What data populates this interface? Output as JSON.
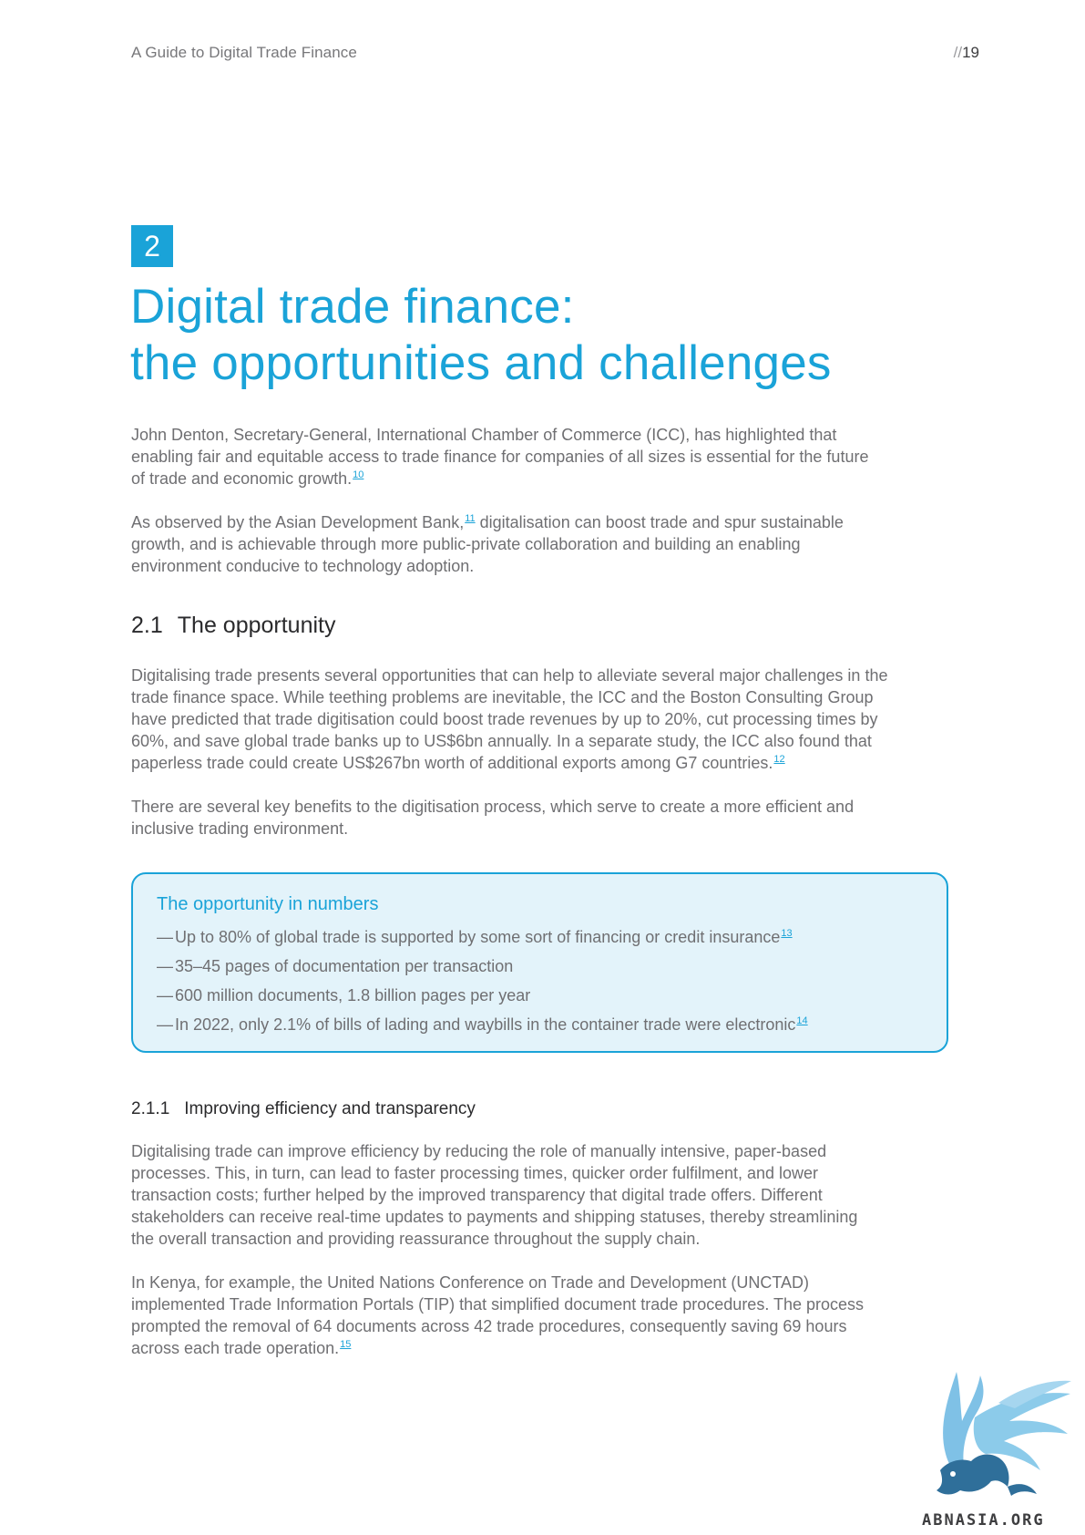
{
  "header": {
    "running_title": "A Guide to Digital Trade Finance",
    "page_prefix": "//",
    "page_number": "19"
  },
  "chapter": {
    "number": "2",
    "title_line1": "Digital trade finance:",
    "title_line2": "the opportunities and challenges"
  },
  "intro": {
    "p1": {
      "lines": [
        "John Denton, Secretary-General, International Chamber of Commerce (ICC), has highlighted that",
        "enabling fair and equitable access to trade finance for companies of all sizes is essential for the future",
        "of trade and economic growth."
      ],
      "footnote": "10"
    },
    "p2": {
      "line1_before": "As observed by the Asian Development Bank,",
      "footnote": "11",
      "line1_after": " digitalisation can boost trade and spur sustainable",
      "lines": [
        "growth, and is achievable through more public-private collaboration and building an enabling",
        "environment conducive to technology adoption."
      ]
    }
  },
  "section_2_1": {
    "number": "2.1",
    "title": "The opportunity",
    "p1": {
      "lines": [
        "Digitalising trade presents several opportunities that can help to alleviate several major challenges in the",
        "trade finance space. While teething problems are inevitable, the ICC and the Boston Consulting Group",
        "have predicted that trade digitisation could boost trade revenues by up to 20%, cut processing times by",
        "60%, and save global trade banks up to US$6bn annually. In a separate study, the ICC also found that",
        "paperless trade could create US$267bn worth of additional exports among G7 countries."
      ],
      "footnote": "12"
    },
    "p2": {
      "lines": [
        "There are several key benefits to the digitisation process, which serve to create a more efficient and",
        "inclusive trading environment."
      ]
    }
  },
  "callout": {
    "title": "The opportunity in numbers",
    "dash": "—",
    "items": [
      {
        "text": "Up to 80% of global trade is supported by some sort of financing or credit insurance",
        "footnote": "13"
      },
      {
        "text": "35–45 pages of documentation per transaction",
        "footnote": ""
      },
      {
        "text": "600 million documents, 1.8 billion pages per year",
        "footnote": ""
      },
      {
        "text": "In 2022, only 2.1% of bills of lading and waybills in the container trade were electronic",
        "footnote": "14"
      }
    ]
  },
  "section_2_1_1": {
    "number": "2.1.1",
    "title": "Improving efficiency and transparency",
    "p1": {
      "lines": [
        "Digitalising trade can improve efficiency by reducing the role of manually intensive, paper-based",
        "processes. This, in turn, can lead to faster processing times, quicker order fulfilment, and lower",
        "transaction costs; further helped by the improved transparency that digital trade offers. Different",
        "stakeholders can receive real-time updates to payments and shipping statuses, thereby streamlining",
        "the overall transaction and providing reassurance throughout the supply chain."
      ]
    },
    "p2": {
      "lines": [
        "In Kenya, for example, the United Nations Conference on Trade and Development (UNCTAD)",
        "implemented Trade Information Portals (TIP) that simplified document trade procedures. The process",
        "prompted the removal of 64 documents across 42 trade procedures, consequently saving 69 hours",
        "across each trade operation."
      ],
      "footnote": "15"
    }
  },
  "watermark": {
    "text": "ABNASIA.ORG",
    "icon": "griffin-logo-icon"
  },
  "colors": {
    "accent": "#1aa3d8",
    "callout_bg": "#e3f3fa",
    "body_text": "#6f6f72",
    "heading_text": "#2a2a2c"
  }
}
